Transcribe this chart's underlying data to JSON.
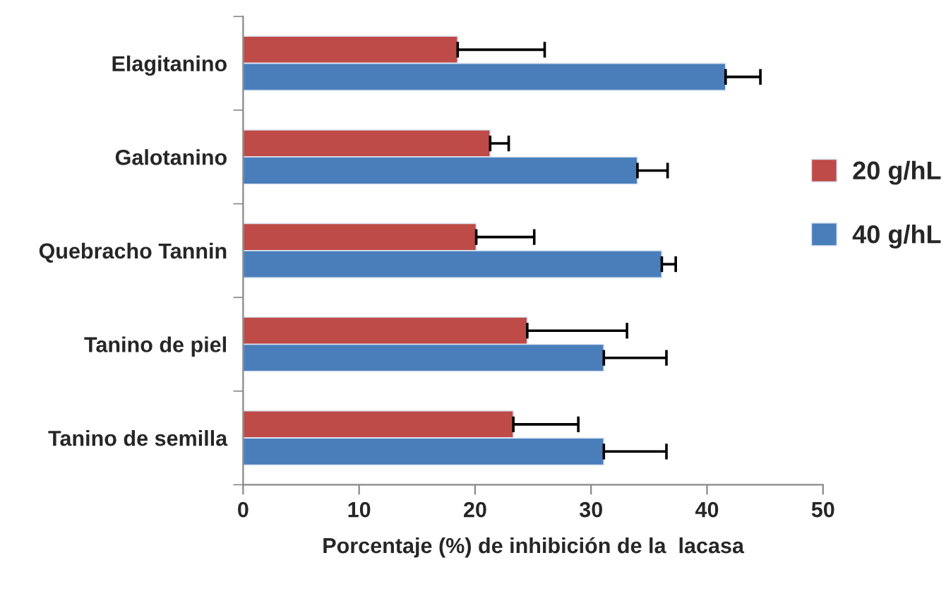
{
  "chart_data": {
    "type": "bar",
    "orientation": "horizontal",
    "xlabel": "Porcentaje (%) de inhibición de la  lacasa",
    "categories": [
      "Elagitanino",
      "Galotanino",
      "Quebracho Tannin",
      "Tanino de piel",
      "Tanino de semilla"
    ],
    "series": [
      {
        "name": "20 g/hL",
        "color": "#be4b48",
        "values": [
          18.5,
          21.3,
          20.1,
          24.5,
          23.3
        ],
        "errors": [
          [
            18.5,
            26.0
          ],
          [
            21.3,
            22.9
          ],
          [
            20.1,
            25.1
          ],
          [
            24.5,
            33.1
          ],
          [
            23.3,
            28.9
          ]
        ]
      },
      {
        "name": "40 g/hL",
        "color": "#4a7ebb",
        "values": [
          41.6,
          34.0,
          36.1,
          31.1,
          31.1
        ],
        "errors": [
          [
            41.6,
            44.6
          ],
          [
            34.0,
            36.6
          ],
          [
            36.1,
            37.3
          ],
          [
            31.1,
            36.5
          ],
          [
            31.1,
            36.5
          ]
        ]
      }
    ],
    "xlim": [
      0,
      50
    ],
    "xticks": [
      0,
      10,
      20,
      30,
      40,
      50
    ],
    "grid": false,
    "legend": "right"
  }
}
